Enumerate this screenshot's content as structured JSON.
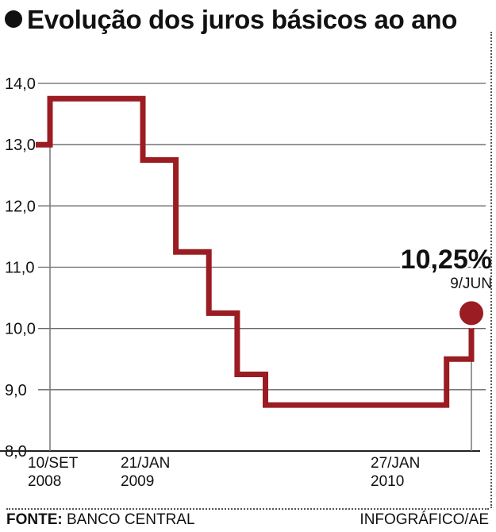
{
  "header": {
    "title": "Evolução dos juros básicos ao ano"
  },
  "footer": {
    "source_label": "FONTE:",
    "source_value": "BANCO CENTRAL",
    "credit": "INFOGRÁFICO/AE"
  },
  "chart_data": {
    "type": "line",
    "step": true,
    "title": "Evolução dos juros básicos ao ano",
    "xlabel": "",
    "ylabel": "",
    "ylim": [
      8.0,
      14.0
    ],
    "grid": true,
    "y_ticks": [
      "14,0",
      "13,0",
      "12,0",
      "11,0",
      "10,0",
      "9,0",
      "8,0"
    ],
    "x_ticks": [
      {
        "line1": "10/SET",
        "line2": "2008",
        "date": "2008-09-10"
      },
      {
        "line1": "21/JAN",
        "line2": "2009",
        "date": "2009-01-21"
      },
      {
        "line1": "27/JAN",
        "line2": "2010",
        "date": "2010-01-27"
      }
    ],
    "series": [
      {
        "color": "#9b1c22",
        "points": [
          {
            "date": "2008-09-10",
            "value": 13.0
          },
          {
            "date": "2008-09-10",
            "value": 13.75
          },
          {
            "date": "2009-01-21",
            "value": 13.75
          },
          {
            "date": "2009-01-21",
            "value": 12.75
          },
          {
            "date": "2009-03-11",
            "value": 12.75
          },
          {
            "date": "2009-03-11",
            "value": 11.25
          },
          {
            "date": "2009-04-29",
            "value": 11.25
          },
          {
            "date": "2009-04-29",
            "value": 10.25
          },
          {
            "date": "2009-06-10",
            "value": 10.25
          },
          {
            "date": "2009-06-10",
            "value": 9.25
          },
          {
            "date": "2009-07-22",
            "value": 9.25
          },
          {
            "date": "2009-07-22",
            "value": 8.75
          },
          {
            "date": "2010-04-28",
            "value": 8.75
          },
          {
            "date": "2010-04-28",
            "value": 9.5
          },
          {
            "date": "2010-06-09",
            "value": 9.5
          },
          {
            "date": "2010-06-09",
            "value": 10.25
          }
        ]
      }
    ],
    "annotation": {
      "value_label": "10,25%",
      "date_label": "9/JUN",
      "date": "2010-06-09",
      "value": 10.25
    }
  }
}
